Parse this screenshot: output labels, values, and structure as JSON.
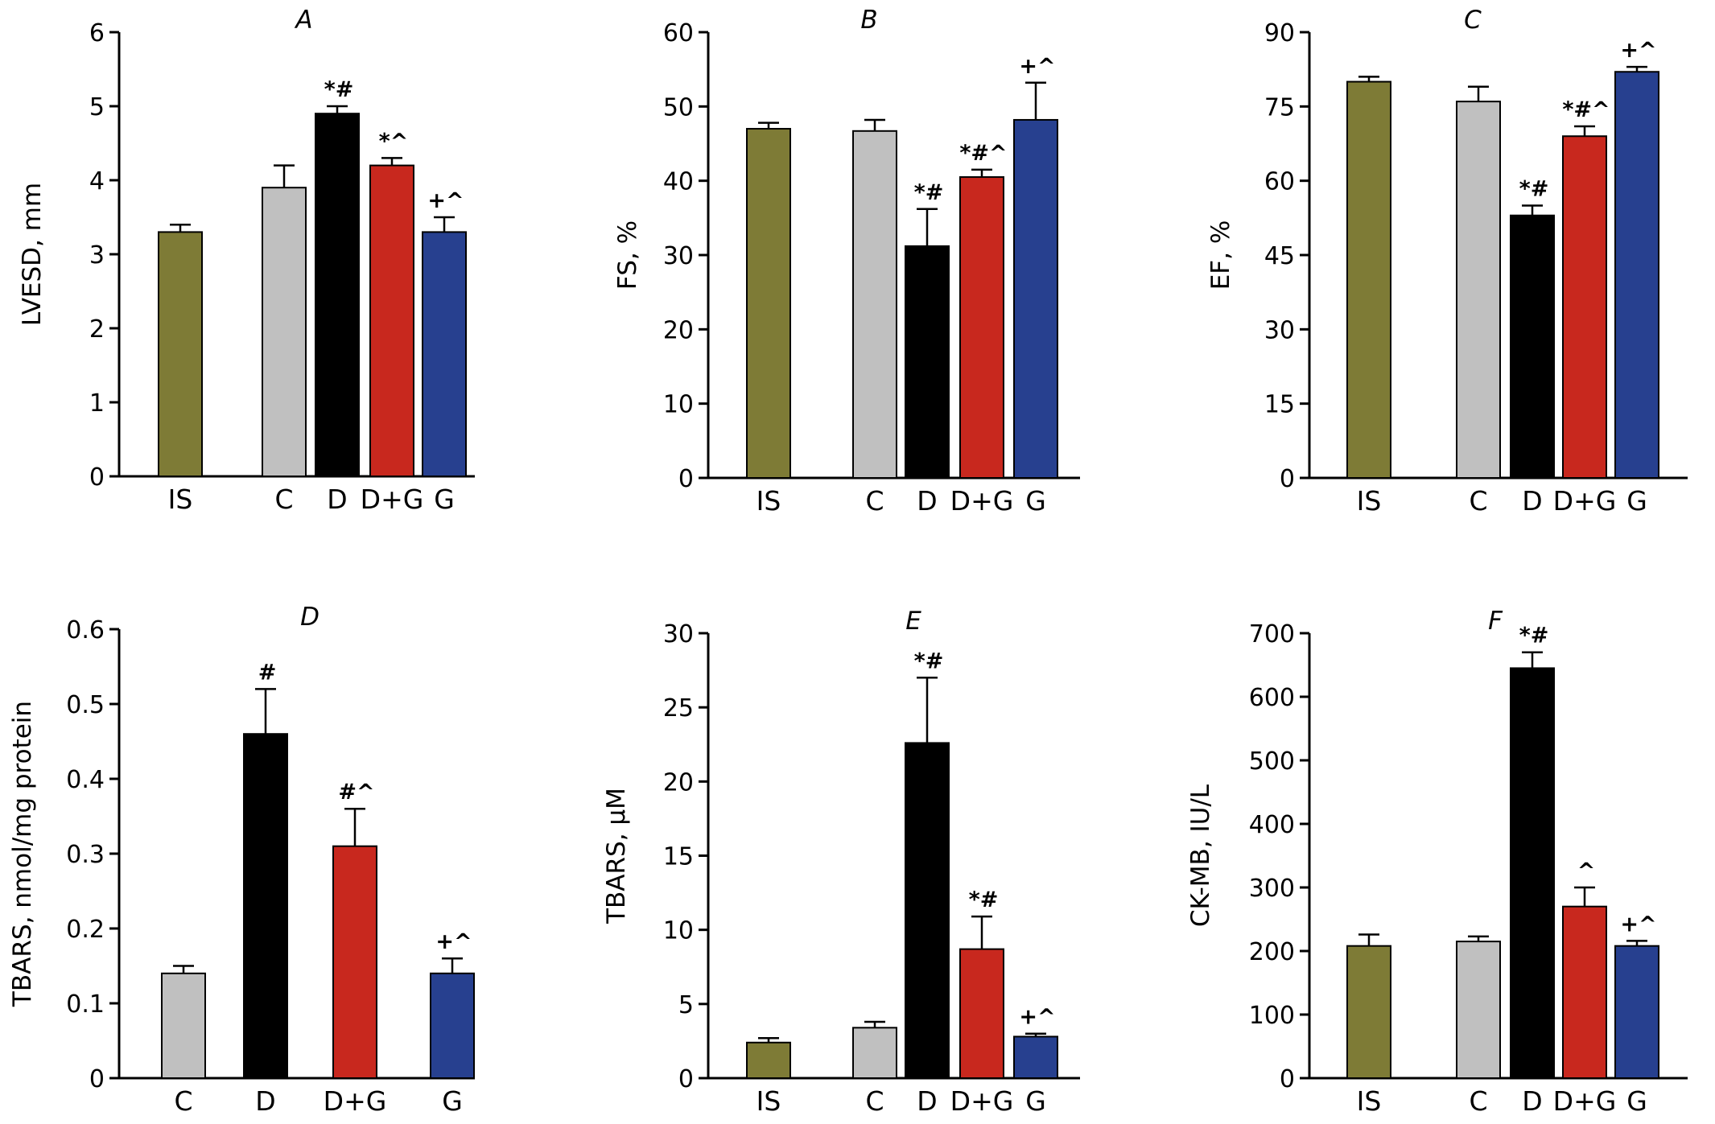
{
  "colors": {
    "IS": "#7e7b36",
    "C": "#c0c0c0",
    "D": "#000000",
    "D+G": "#c8281e",
    "G": "#27408f"
  },
  "chart_data": [
    {
      "type": "bar",
      "panel": "A",
      "ylabel": "LVESD, mm",
      "ylim": [
        0,
        6
      ],
      "yticks": [
        "0",
        "1",
        "2",
        "3",
        "4",
        "5",
        "6"
      ],
      "categories": [
        "IS",
        "C",
        "D",
        "D+G",
        "G"
      ],
      "values": [
        3.3,
        3.9,
        4.9,
        4.2,
        3.3
      ],
      "errors": [
        0.1,
        0.3,
        0.1,
        0.1,
        0.2
      ],
      "marks": [
        "",
        "",
        "*#",
        "*^",
        "+^"
      ]
    },
    {
      "type": "bar",
      "panel": "B",
      "ylabel": "FS, %",
      "ylim": [
        0,
        60
      ],
      "yticks": [
        "0",
        "10",
        "20",
        "30",
        "40",
        "50",
        "60"
      ],
      "categories": [
        "IS",
        "C",
        "D",
        "D+G",
        "G"
      ],
      "values": [
        47,
        46.7,
        31.2,
        40.5,
        48.2
      ],
      "errors": [
        0.8,
        1.5,
        5,
        1,
        5
      ],
      "marks": [
        "",
        "",
        "*#",
        "*#^",
        "+^"
      ]
    },
    {
      "type": "bar",
      "panel": "C",
      "ylabel": "EF, %",
      "ylim": [
        0,
        90
      ],
      "yticks": [
        "0",
        "15",
        "30",
        "45",
        "60",
        "75",
        "90"
      ],
      "categories": [
        "IS",
        "C",
        "D",
        "D+G",
        "G"
      ],
      "values": [
        80,
        76,
        53,
        69,
        82
      ],
      "errors": [
        1,
        3,
        2,
        2,
        1
      ],
      "marks": [
        "",
        "",
        "*#",
        "*#^",
        "+^"
      ]
    },
    {
      "type": "bar",
      "panel": "D",
      "ylabel": "TBARS, nmol/mg protein",
      "ylim": [
        0,
        0.6
      ],
      "yticks": [
        "0",
        "0.1",
        "0.2",
        "0.3",
        "0.4",
        "0.5",
        "0.6"
      ],
      "categories": [
        "C",
        "D",
        "D+G",
        "G"
      ],
      "values": [
        0.14,
        0.46,
        0.31,
        0.14
      ],
      "errors": [
        0.01,
        0.06,
        0.05,
        0.02
      ],
      "marks": [
        "",
        "#",
        "#^",
        "+^"
      ]
    },
    {
      "type": "bar",
      "panel": "E",
      "ylabel": "TBARS, μM",
      "ylim": [
        0,
        30
      ],
      "yticks": [
        "0",
        "5",
        "10",
        "15",
        "20",
        "25",
        "30"
      ],
      "categories": [
        "IS",
        "C",
        "D",
        "D+G",
        "G"
      ],
      "values": [
        2.4,
        3.4,
        22.6,
        8.7,
        2.8
      ],
      "errors": [
        0.3,
        0.4,
        4.4,
        2.2,
        0.2
      ],
      "marks": [
        "",
        "",
        "*#",
        "*#",
        "+^"
      ]
    },
    {
      "type": "bar",
      "panel": "F",
      "ylabel": "CK-MB, IU/L",
      "ylim": [
        0,
        700
      ],
      "yticks": [
        "0",
        "100",
        "200",
        "300",
        "400",
        "500",
        "600",
        "700"
      ],
      "categories": [
        "IS",
        "C",
        "D",
        "D+G",
        "G"
      ],
      "values": [
        208,
        215,
        645,
        270,
        208
      ],
      "errors": [
        18,
        8,
        25,
        30,
        8
      ],
      "marks": [
        "",
        "",
        "*#",
        "^",
        "+^"
      ]
    }
  ]
}
